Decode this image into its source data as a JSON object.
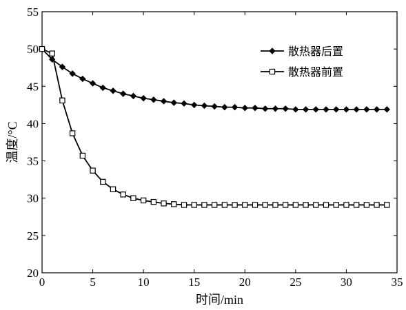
{
  "chart_data": {
    "type": "line",
    "title": "",
    "xlabel": "时间/min",
    "ylabel": "温度/°C",
    "xlim": [
      0,
      35
    ],
    "ylim": [
      20,
      55
    ],
    "xticks": [
      0,
      5,
      10,
      15,
      20,
      25,
      30,
      35
    ],
    "yticks": [
      20,
      25,
      30,
      35,
      40,
      45,
      50,
      55
    ],
    "grid": false,
    "legend_position": "top-right",
    "x": [
      0,
      1,
      2,
      3,
      4,
      5,
      6,
      7,
      8,
      9,
      10,
      11,
      12,
      13,
      14,
      15,
      16,
      17,
      18,
      19,
      20,
      21,
      22,
      23,
      24,
      25,
      26,
      27,
      28,
      29,
      30,
      31,
      32,
      33,
      34
    ],
    "series": [
      {
        "name": "散热器后置",
        "marker": "diamond",
        "color": "#000000",
        "values": [
          50.0,
          48.6,
          47.6,
          46.7,
          46.0,
          45.4,
          44.8,
          44.4,
          44.0,
          43.7,
          43.4,
          43.2,
          43.0,
          42.8,
          42.7,
          42.5,
          42.4,
          42.3,
          42.2,
          42.2,
          42.1,
          42.1,
          42.0,
          42.0,
          42.0,
          41.9,
          41.9,
          41.9,
          41.9,
          41.9,
          41.9,
          41.9,
          41.9,
          41.9,
          41.9
        ]
      },
      {
        "name": "散热器前置",
        "marker": "square",
        "color": "#000000",
        "values": [
          50.0,
          49.4,
          43.1,
          38.7,
          35.7,
          33.7,
          32.2,
          31.2,
          30.5,
          30.0,
          29.7,
          29.5,
          29.3,
          29.2,
          29.1,
          29.1,
          29.1,
          29.1,
          29.1,
          29.1,
          29.1,
          29.1,
          29.1,
          29.1,
          29.1,
          29.1,
          29.1,
          29.1,
          29.1,
          29.1,
          29.1,
          29.1,
          29.1,
          29.1,
          29.1
        ]
      }
    ]
  }
}
